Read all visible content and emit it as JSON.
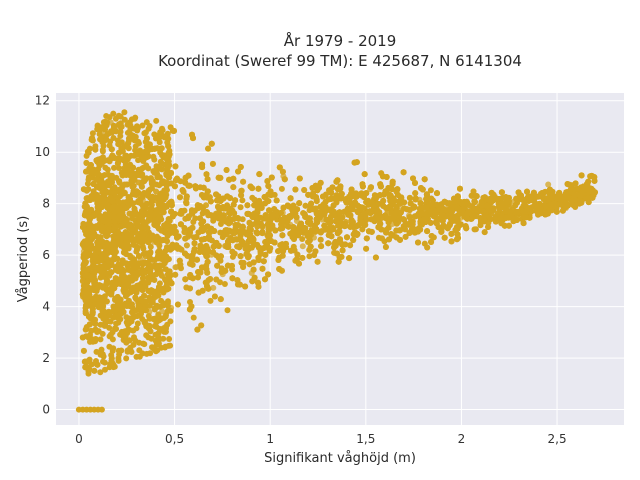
{
  "chart_data": {
    "type": "scatter",
    "title": [
      "År 1979 - 2019",
      "Koordinat (Sweref 99 TM): E 425687, N 6141304"
    ],
    "xlabel": "Signifikant våghöjd (m)",
    "ylabel": "Vågperiod (s)",
    "xlim": [
      -0.12,
      2.85
    ],
    "ylim": [
      -0.6,
      12.3
    ],
    "xticks": [
      0,
      0.5,
      1,
      1.5,
      2,
      2.5
    ],
    "xtick_labels": [
      "0",
      "0,5",
      "1",
      "1,5",
      "2",
      "2,5"
    ],
    "yticks": [
      0,
      2,
      4,
      6,
      8,
      10,
      12
    ],
    "ytick_labels": [
      "0",
      "2",
      "4",
      "6",
      "8",
      "10",
      "12"
    ],
    "grid": true,
    "background": "#e9e9f1",
    "point_color": "#d4a420",
    "series": [
      {
        "description": "dense cloud of hourly observations; envelope of the point cloud",
        "envelope_upper": [
          [
            0.0,
            9.0
          ],
          [
            0.05,
            10.5
          ],
          [
            0.1,
            11.3
          ],
          [
            0.2,
            11.7
          ],
          [
            0.3,
            11.5
          ],
          [
            0.4,
            11.3
          ],
          [
            0.5,
            11.0
          ],
          [
            0.7,
            10.5
          ],
          [
            0.9,
            10.0
          ],
          [
            1.1,
            9.6
          ],
          [
            1.3,
            9.8
          ],
          [
            1.5,
            9.6
          ],
          [
            1.7,
            9.3
          ],
          [
            1.9,
            8.8
          ],
          [
            2.1,
            8.6
          ],
          [
            2.3,
            8.6
          ],
          [
            2.5,
            8.8
          ],
          [
            2.7,
            9.3
          ]
        ],
        "envelope_lower": [
          [
            0.02,
            1.2
          ],
          [
            0.1,
            1.3
          ],
          [
            0.2,
            1.7
          ],
          [
            0.3,
            2.0
          ],
          [
            0.5,
            2.5
          ],
          [
            0.7,
            3.3
          ],
          [
            0.9,
            4.1
          ],
          [
            1.1,
            4.8
          ],
          [
            1.3,
            5.3
          ],
          [
            1.5,
            5.7
          ],
          [
            1.7,
            6.0
          ],
          [
            1.9,
            6.4
          ],
          [
            2.1,
            6.8
          ],
          [
            2.3,
            7.1
          ],
          [
            2.5,
            7.4
          ],
          [
            2.7,
            8.0
          ]
        ],
        "zero_period_points": [
          [
            0.0,
            0
          ],
          [
            0.02,
            0
          ],
          [
            0.04,
            0
          ],
          [
            0.06,
            0
          ],
          [
            0.08,
            0
          ],
          [
            0.1,
            0
          ],
          [
            0.12,
            0
          ]
        ]
      }
    ]
  }
}
